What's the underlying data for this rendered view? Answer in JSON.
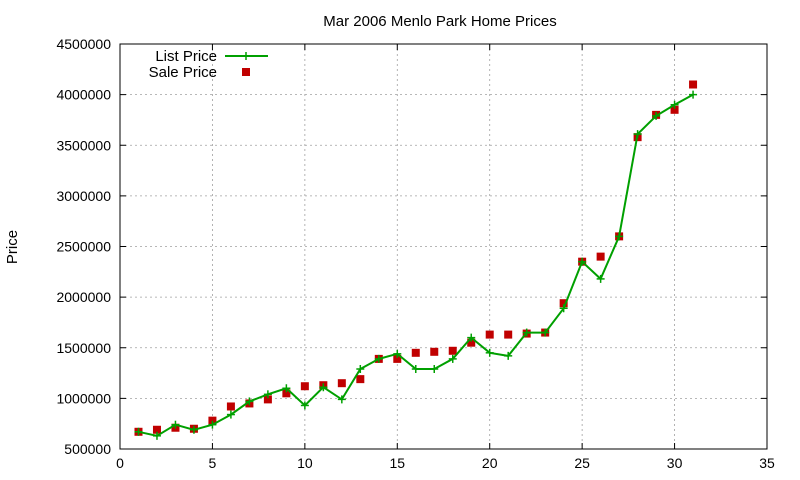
{
  "chart_data": {
    "type": "line",
    "title": "Mar 2006 Menlo Park Home Prices",
    "xlabel": "",
    "ylabel": "Price",
    "xlim": [
      0,
      35
    ],
    "ylim": [
      500000,
      4500000
    ],
    "xticks": [
      0,
      5,
      10,
      15,
      20,
      25,
      30,
      35
    ],
    "yticks": [
      500000,
      1000000,
      1500000,
      2000000,
      2500000,
      3000000,
      3500000,
      4000000,
      4500000
    ],
    "grid": true,
    "legend_position": "top-left",
    "series": [
      {
        "name": "List Price",
        "style": "line+cross",
        "color": "#00a000",
        "x": [
          1,
          2,
          3,
          4,
          5,
          6,
          7,
          8,
          9,
          10,
          11,
          12,
          13,
          14,
          15,
          16,
          17,
          18,
          19,
          20,
          21,
          22,
          23,
          24,
          25,
          26,
          27,
          28,
          29,
          30,
          31
        ],
        "values": [
          670000,
          630000,
          740000,
          690000,
          740000,
          840000,
          970000,
          1040000,
          1100000,
          930000,
          1110000,
          990000,
          1290000,
          1390000,
          1440000,
          1290000,
          1290000,
          1390000,
          1600000,
          1450000,
          1420000,
          1650000,
          1650000,
          1890000,
          2350000,
          2180000,
          2600000,
          3610000,
          3790000,
          3900000,
          4000000
        ]
      },
      {
        "name": "Sale Price",
        "style": "square",
        "color": "#c00000",
        "x": [
          1,
          2,
          3,
          4,
          5,
          6,
          7,
          8,
          9,
          10,
          11,
          12,
          13,
          14,
          15,
          16,
          17,
          18,
          19,
          20,
          21,
          22,
          23,
          24,
          25,
          26,
          27,
          28,
          29,
          30,
          31
        ],
        "values": [
          670000,
          690000,
          710000,
          700000,
          780000,
          920000,
          950000,
          990000,
          1050000,
          1120000,
          1130000,
          1150000,
          1190000,
          1390000,
          1390000,
          1450000,
          1460000,
          1470000,
          1550000,
          1630000,
          1630000,
          1640000,
          1650000,
          1940000,
          2350000,
          2400000,
          2600000,
          3580000,
          3800000,
          3850000,
          4100000
        ]
      }
    ]
  }
}
